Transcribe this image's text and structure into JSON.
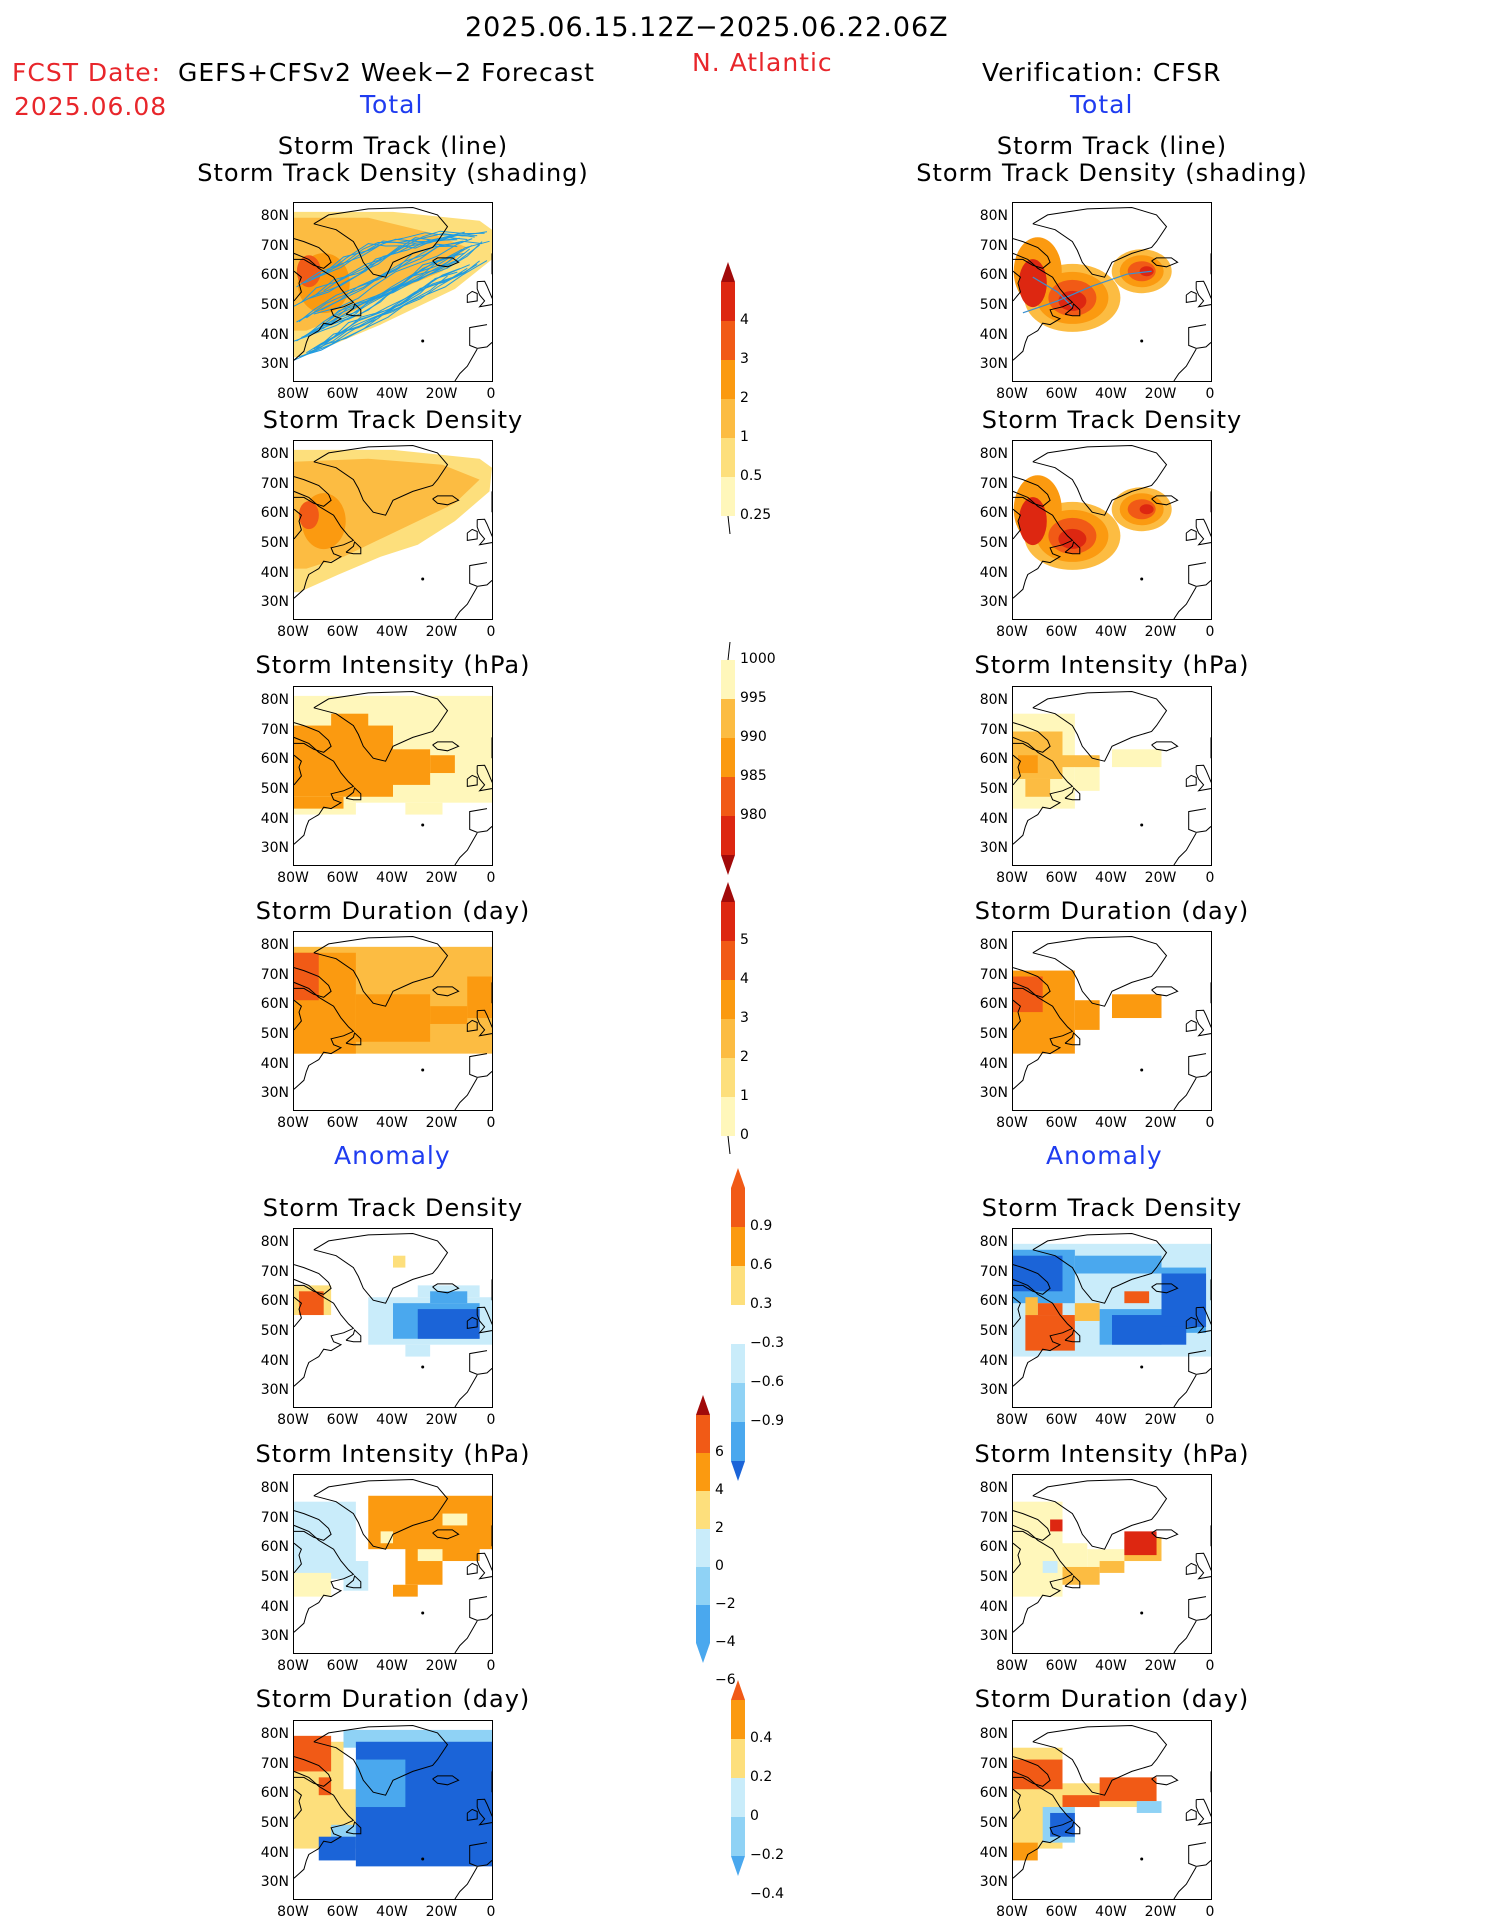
{
  "header": {
    "date_range": "2025.06.15.12Z−2025.06.22.06Z",
    "region": "N. Atlantic",
    "fcst_date_label": "FCST Date:",
    "fcst_date": "2025.06.08",
    "forecast_label": "GEFS+CFSv2 Week−2 Forecast",
    "verification_label": "Verification: CFSR"
  },
  "sections": {
    "total": "Total",
    "anomaly": "Anomaly"
  },
  "panel_titles": {
    "track_line": "Storm Track (line)",
    "track_shading": "Storm Track Density (shading)",
    "density": "Storm Track Density",
    "intensity": "Storm Intensity (hPa)",
    "duration": "Storm Duration (day)"
  },
  "axes": {
    "lat_ticks": [
      "80N",
      "70N",
      "60N",
      "50N",
      "40N",
      "30N"
    ],
    "lon_ticks": [
      "80W",
      "60W",
      "40W",
      "20W",
      "0"
    ]
  },
  "colorbars": {
    "density_total": [
      "4",
      "3",
      "2",
      "1",
      "0.5",
      "0.25"
    ],
    "intensity_total": [
      "1000",
      "995",
      "990",
      "985",
      "980"
    ],
    "duration_total": [
      "5",
      "4",
      "3",
      "2",
      "1",
      "0"
    ],
    "density_anom": [
      "0.9",
      "0.6",
      "0.3",
      "−0.3",
      "−0.6",
      "−0.9"
    ],
    "intensity_anom": [
      "6",
      "4",
      "2",
      "0",
      "−2",
      "−4",
      "−6"
    ],
    "duration_anom": [
      "0.4",
      "0.2",
      "0",
      "−0.2",
      "−0.4"
    ]
  },
  "colors": {
    "header_red": "#e8262b",
    "section_blue": "#1f3cf0",
    "track_line": "#1e9be0"
  }
}
